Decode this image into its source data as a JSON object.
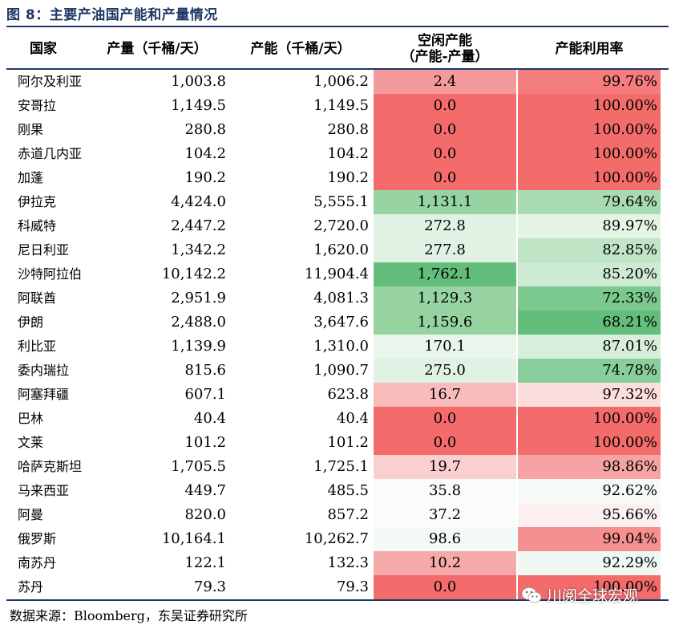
{
  "title": "图 8：主要产油国产能和产量情况",
  "headers": {
    "country": "国家",
    "production": "产量（千桶/天）",
    "capacity": "产能（千桶/天）",
    "idle_line1": "空闲产能",
    "idle_line2": "（产能-产量）",
    "utilization": "产能利用率"
  },
  "rows": [
    {
      "country": "阿尔及利亚",
      "production": "1,003.8",
      "capacity": "1,006.2",
      "idle": "2.4",
      "util": "99.76%",
      "idle_color": "#f59a9a",
      "util_color": "#f57d7d"
    },
    {
      "country": "安哥拉",
      "production": "1,149.5",
      "capacity": "1,149.5",
      "idle": "0.0",
      "util": "100.00%",
      "idle_color": "#f46b6b",
      "util_color": "#f46b6b"
    },
    {
      "country": "刚果",
      "production": "280.8",
      "capacity": "280.8",
      "idle": "0.0",
      "util": "100.00%",
      "idle_color": "#f46b6b",
      "util_color": "#f46b6b"
    },
    {
      "country": "赤道几内亚",
      "production": "104.2",
      "capacity": "104.2",
      "idle": "0.0",
      "util": "100.00%",
      "idle_color": "#f46b6b",
      "util_color": "#f46b6b"
    },
    {
      "country": "加蓬",
      "production": "190.2",
      "capacity": "190.2",
      "idle": "0.0",
      "util": "100.00%",
      "idle_color": "#f46b6b",
      "util_color": "#f46b6b"
    },
    {
      "country": "伊拉克",
      "production": "4,424.0",
      "capacity": "5,555.1",
      "idle": "1,131.1",
      "util": "79.64%",
      "idle_color": "#98d4a3",
      "util_color": "#a8dbb2"
    },
    {
      "country": "科威特",
      "production": "2,447.2",
      "capacity": "2,720.0",
      "idle": "272.8",
      "util": "89.97%",
      "idle_color": "#e0f2e3",
      "util_color": "#e6f4e8"
    },
    {
      "country": "尼日利亚",
      "production": "1,342.2",
      "capacity": "1,620.0",
      "idle": "277.8",
      "util": "82.85%",
      "idle_color": "#e0f2e3",
      "util_color": "#bfe4c6"
    },
    {
      "country": "沙特阿拉伯",
      "production": "10,142.2",
      "capacity": "11,904.4",
      "idle": "1,762.1",
      "util": "85.20%",
      "idle_color": "#63be7b",
      "util_color": "#cdeAd2"
    },
    {
      "country": "阿联酋",
      "production": "2,951.9",
      "capacity": "4,081.3",
      "idle": "1,129.3",
      "util": "72.33%",
      "idle_color": "#98d4a3",
      "util_color": "#7bc98f"
    },
    {
      "country": "伊朗",
      "production": "2,488.0",
      "capacity": "3,647.6",
      "idle": "1,159.6",
      "util": "68.21%",
      "idle_color": "#96d3a1",
      "util_color": "#63be7b"
    },
    {
      "country": "利比亚",
      "production": "1,139.9",
      "capacity": "1,310.0",
      "idle": "170.1",
      "util": "87.01%",
      "idle_color": "#eaf6ec",
      "util_color": "#d8eedc"
    },
    {
      "country": "委内瑞拉",
      "production": "815.6",
      "capacity": "1,090.7",
      "idle": "275.0",
      "util": "74.78%",
      "idle_color": "#e0f2e3",
      "util_color": "#88ce9a"
    },
    {
      "country": "阿塞拜疆",
      "production": "607.1",
      "capacity": "623.8",
      "idle": "16.7",
      "util": "97.32%",
      "idle_color": "#f8bcbc",
      "util_color": "#fbdede"
    },
    {
      "country": "巴林",
      "production": "40.4",
      "capacity": "40.4",
      "idle": "0.0",
      "util": "100.00%",
      "idle_color": "#f46b6b",
      "util_color": "#f46b6b"
    },
    {
      "country": "文莱",
      "production": "101.2",
      "capacity": "101.2",
      "idle": "0.0",
      "util": "100.00%",
      "idle_color": "#f46b6b",
      "util_color": "#f46b6b"
    },
    {
      "country": "哈萨克斯坦",
      "production": "1,705.5",
      "capacity": "1,725.1",
      "idle": "19.7",
      "util": "98.86%",
      "idle_color": "#f9cfcf",
      "util_color": "#f7a3a3"
    },
    {
      "country": "马来西亚",
      "production": "449.7",
      "capacity": "485.5",
      "idle": "35.8",
      "util": "92.62%",
      "idle_color": "#fafcfa",
      "util_color": "#f6fbf7"
    },
    {
      "country": "阿曼",
      "production": "820.0",
      "capacity": "857.2",
      "idle": "37.2",
      "util": "95.66%",
      "idle_color": "#fafcfa",
      "util_color": "#fdf0f0"
    },
    {
      "country": "俄罗斯",
      "production": "10,164.1",
      "capacity": "10,262.7",
      "idle": "98.6",
      "util": "99.04%",
      "idle_color": "#f3f9f4",
      "util_color": "#f69090"
    },
    {
      "country": "南苏丹",
      "production": "122.1",
      "capacity": "132.3",
      "idle": "10.2",
      "util": "92.29%",
      "idle_color": "#f6a9a9",
      "util_color": "#f0f8f1"
    },
    {
      "country": "苏丹",
      "production": "79.3",
      "capacity": "79.3",
      "idle": "0.0",
      "util": "100.00%",
      "idle_color": "#f46b6b",
      "util_color": "#f46b6b"
    }
  ],
  "footer": "数据来源：Bloomberg，东吴证券研究所",
  "watermark": "川阅全球宏观"
}
